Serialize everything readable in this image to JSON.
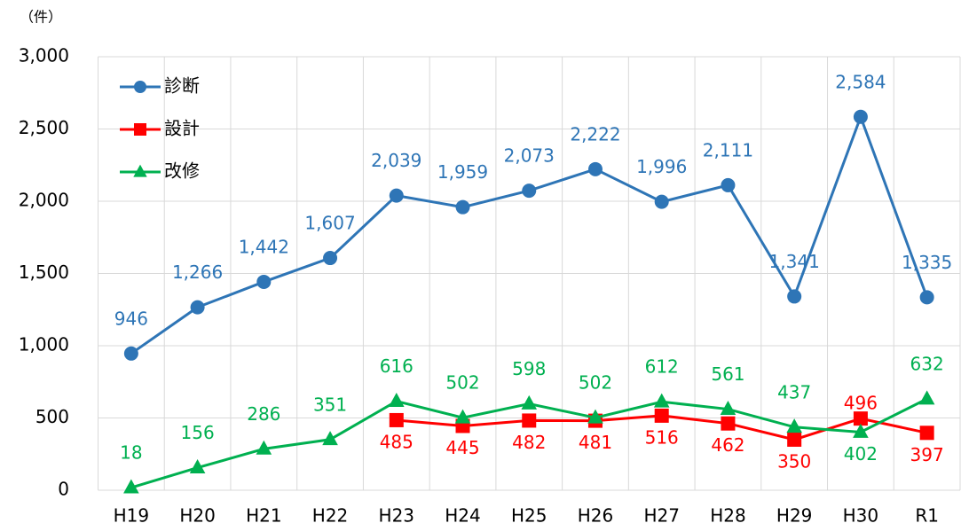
{
  "chart_data": {
    "type": "line",
    "y_label": "（件）",
    "categories": [
      "H19",
      "H20",
      "H21",
      "H22",
      "H23",
      "H24",
      "H25",
      "H26",
      "H27",
      "H28",
      "H29",
      "H30",
      "R1"
    ],
    "series": [
      {
        "name": "診断",
        "color": "#2e75b6",
        "marker": "circle",
        "values": [
          946,
          1266,
          1442,
          1607,
          2039,
          1959,
          2073,
          2222,
          1996,
          2111,
          1341,
          2584,
          1335
        ],
        "value_labels": [
          "946",
          "1,266",
          "1,442",
          "1,607",
          "2,039",
          "1,959",
          "2,073",
          "2,222",
          "1,996",
          "2,111",
          "1,341",
          "2,584",
          "1,335"
        ]
      },
      {
        "name": "設計",
        "color": "#ff0000",
        "marker": "square",
        "values": [
          null,
          null,
          null,
          null,
          485,
          445,
          482,
          481,
          516,
          462,
          350,
          496,
          397
        ]
      },
      {
        "name": "改修",
        "color": "#00b050",
        "marker": "triangle",
        "values": [
          18,
          156,
          286,
          351,
          616,
          502,
          598,
          502,
          612,
          561,
          437,
          402,
          632
        ]
      }
    ],
    "ylim": [
      0,
      3000
    ],
    "yticks": [
      0,
      500,
      {
        "value": 1000,
        "label": "1,000"
      },
      {
        "value": 1500,
        "label": "1,500"
      },
      {
        "value": 2000,
        "label": "2,000"
      },
      {
        "value": 2500,
        "label": "2,500"
      },
      {
        "value": 3000,
        "label": "3,000"
      }
    ],
    "grid": true,
    "legend": "top-left"
  }
}
